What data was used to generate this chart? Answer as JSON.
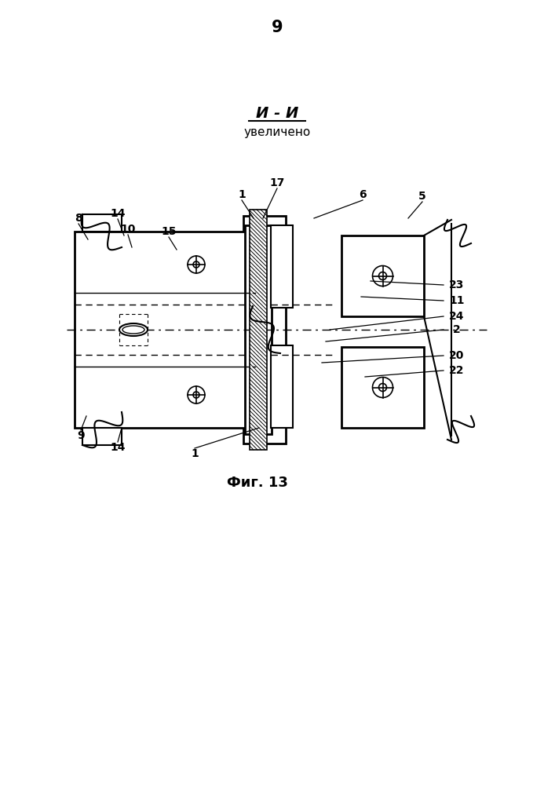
{
  "page_number": "9",
  "title_section": "И - И",
  "subtitle_section": "увеличено",
  "figure_caption": "Фиг. 13",
  "bg_color": "#ffffff",
  "line_color": "#000000"
}
